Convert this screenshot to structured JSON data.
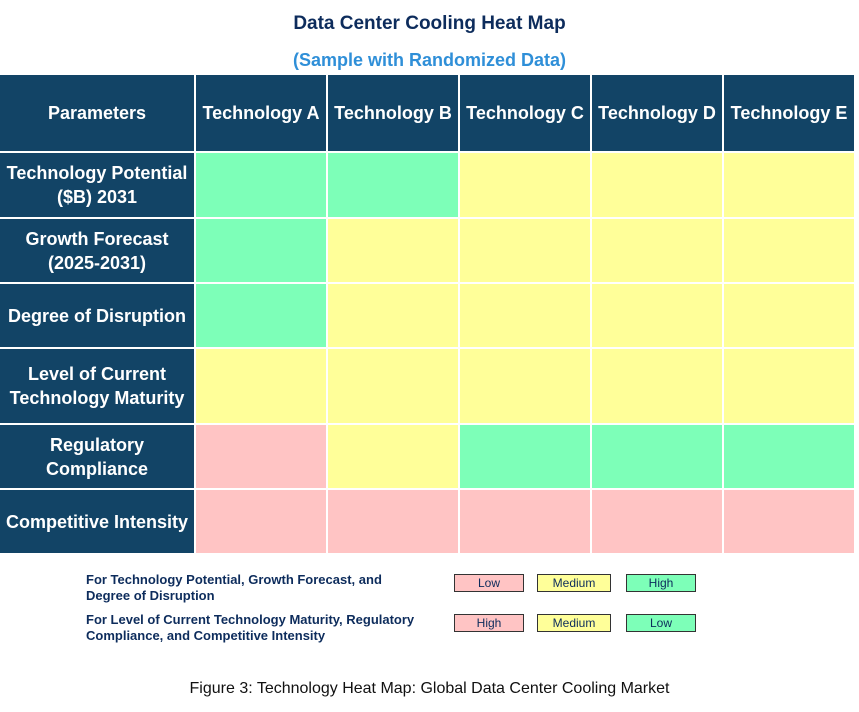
{
  "title": "Data Center Cooling Heat Map",
  "subtitle": "(Sample with Randomized Data)",
  "colors": {
    "header": "#124466",
    "high": "#7dffb8",
    "medium": "#ffff99",
    "low": "#ffc4c4"
  },
  "columns": [
    "Parameters",
    "Technology A",
    "Technology B",
    "Technology C",
    "Technology D",
    "Technology E"
  ],
  "rows": [
    {
      "label": "Technology Potential ($B) 2031",
      "cells": [
        "high",
        "high",
        "medium",
        "medium",
        "medium"
      ]
    },
    {
      "label": "Growth Forecast (2025-2031)",
      "cells": [
        "high",
        "medium",
        "medium",
        "medium",
        "medium"
      ]
    },
    {
      "label": "Degree of Disruption",
      "cells": [
        "high",
        "medium",
        "medium",
        "medium",
        "medium"
      ]
    },
    {
      "label": "Level of Current Technology Maturity",
      "cells": [
        "medium",
        "medium",
        "medium",
        "medium",
        "medium"
      ]
    },
    {
      "label": "Regulatory Compliance",
      "cells": [
        "low",
        "medium",
        "high",
        "high",
        "high"
      ]
    },
    {
      "label": "Competitive Intensity",
      "cells": [
        "low",
        "low",
        "low",
        "low",
        "low"
      ]
    }
  ],
  "legend": [
    {
      "text": "For Technology Potential, Growth Forecast, and Degree of Disruption",
      "labels": [
        "Low",
        "Medium",
        "High"
      ]
    },
    {
      "text": "For Level of Current Technology Maturity, Regulatory Compliance, and Competitive Intensity",
      "labels": [
        "High",
        "Medium",
        "Low"
      ]
    }
  ],
  "caption": "Figure 3: Technology Heat Map: Global Data Center Cooling Market"
}
